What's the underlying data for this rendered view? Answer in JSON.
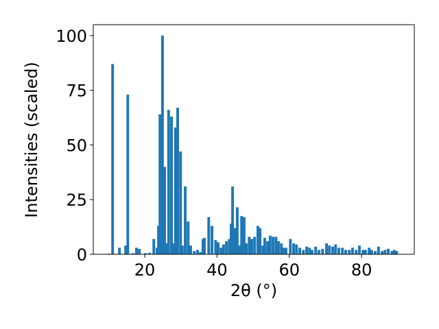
{
  "chart_data": {
    "type": "bar",
    "xlabel": "2θ (°)",
    "ylabel": "Intensities (scaled)",
    "color": "#1f77b4",
    "x": [
      10,
      11.1,
      13,
      14.7,
      15.3,
      16.8,
      17.7,
      18.5,
      20.2,
      21.3,
      22.5,
      23.4,
      23.8,
      24.2,
      24.9,
      25.5,
      26.1,
      26.6,
      27.4,
      28,
      28.5,
      29.1,
      29.9,
      30.4,
      31.2,
      32,
      32.7,
      33.7,
      34.6,
      35.4,
      36.1,
      36.5,
      37.7,
      38.6,
      39.6,
      40.3,
      41.1,
      41.8,
      42.6,
      43.4,
      43.9,
      44.3,
      44.9,
      45.6,
      46.2,
      46.8,
      47.5,
      48.1,
      48.9,
      49.6,
      50.4,
      51.3,
      51.9,
      52.7,
      53.2,
      54,
      54.7,
      55.5,
      56.3,
      57,
      57.8,
      58.4,
      59.1,
      60.3,
      61.2,
      62,
      62.9,
      63.9,
      64.8,
      65.6,
      66.3,
      67.3,
      68.2,
      69.2,
      70.3,
      71.1,
      72,
      72.8,
      73.7,
      74.7,
      75.6,
      76.6,
      77.5,
      78.5,
      79.4,
      80.4,
      81.1,
      82.1,
      82.8,
      83.8,
      84.7,
      85.7,
      86.5,
      87.4,
      88.4,
      89.1,
      89.7
    ],
    "values": [
      0.3,
      87,
      3,
      4,
      73,
      0.5,
      3,
      2.5,
      0.5,
      0.7,
      7,
      3,
      13,
      64,
      100,
      40,
      5,
      66,
      63,
      5,
      58,
      67,
      47,
      4,
      31,
      15,
      4,
      1.5,
      2,
      1,
      7,
      7.5,
      17,
      13,
      6.5,
      5.5,
      3,
      4.5,
      6,
      7,
      14,
      31,
      12,
      21.5,
      4,
      17.5,
      17,
      5,
      8,
      7,
      8,
      13,
      12,
      4,
      7.5,
      6,
      8.5,
      8,
      8,
      6,
      5,
      3,
      3,
      7,
      5,
      4.5,
      3,
      2,
      3.5,
      3,
      2,
      3.5,
      2,
      2.5,
      5,
      4,
      3.5,
      4.5,
      3,
      3,
      2,
      2,
      3,
      2,
      4,
      2,
      2,
      3,
      2,
      1.5,
      3.5,
      1.5,
      2,
      2.5,
      1.5,
      2,
      1.5
    ],
    "xlim": [
      5.75,
      94.6
    ],
    "ylim": [
      0,
      105
    ],
    "xticks": [
      20,
      40,
      60,
      80
    ],
    "yticks": [
      0,
      25,
      50,
      75,
      100
    ]
  }
}
